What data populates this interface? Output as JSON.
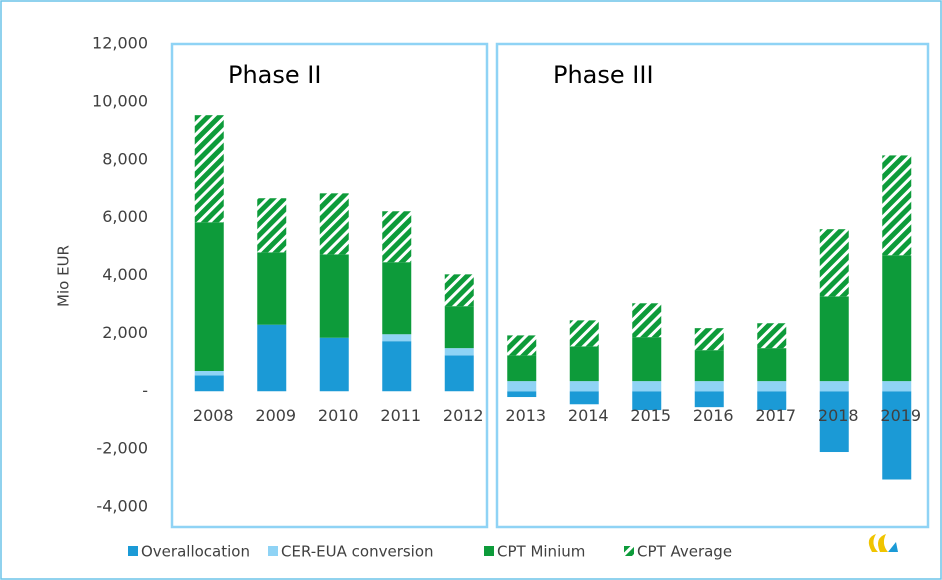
{
  "chart_data": {
    "type": "stacked_bar",
    "y_axis_label": "Mio EUR",
    "annotations": [
      "Phase II",
      "Phase III"
    ],
    "categories": [
      "2008",
      "2009",
      "2010",
      "2011",
      "2012",
      "2013",
      "2014",
      "2015",
      "2016",
      "2017",
      "2018",
      "2019"
    ],
    "series": [
      {
        "name": "Overallocation",
        "color": "#1b9ad6",
        "values": [
          550,
          2300,
          1850,
          1730,
          1240,
          -200,
          -450,
          -650,
          -550,
          -650,
          -2100,
          -3050
        ]
      },
      {
        "name": "CER-EUA conversion",
        "color": "#8fd3f5",
        "values": [
          150,
          0,
          0,
          240,
          250,
          350,
          350,
          350,
          350,
          350,
          350,
          350
        ]
      },
      {
        "name": "CPT Minium",
        "color": "#0d9b3a",
        "values": [
          5140,
          2500,
          2880,
          2490,
          1450,
          890,
          1200,
          1520,
          1070,
          1140,
          2930,
          4350
        ]
      },
      {
        "name": "CPT Average",
        "color": "#0d9b3a",
        "hatch": true,
        "values": [
          3700,
          1870,
          2110,
          1760,
          1100,
          690,
          900,
          1170,
          760,
          860,
          2320,
          3450
        ]
      }
    ],
    "ylim": [
      -4000,
      12000
    ],
    "yticks": [
      {
        "value": -4000,
        "label": "-4,000"
      },
      {
        "value": -2000,
        "label": "-2,000"
      },
      {
        "value": 0,
        "label": "-"
      },
      {
        "value": 2000,
        "label": "2,000"
      },
      {
        "value": 4000,
        "label": "4,000"
      },
      {
        "value": 6000,
        "label": "6,000"
      },
      {
        "value": 8000,
        "label": "8,000"
      },
      {
        "value": 10000,
        "label": "10,000"
      },
      {
        "value": 12000,
        "label": "12,000"
      }
    ],
    "legend": "bottom"
  }
}
